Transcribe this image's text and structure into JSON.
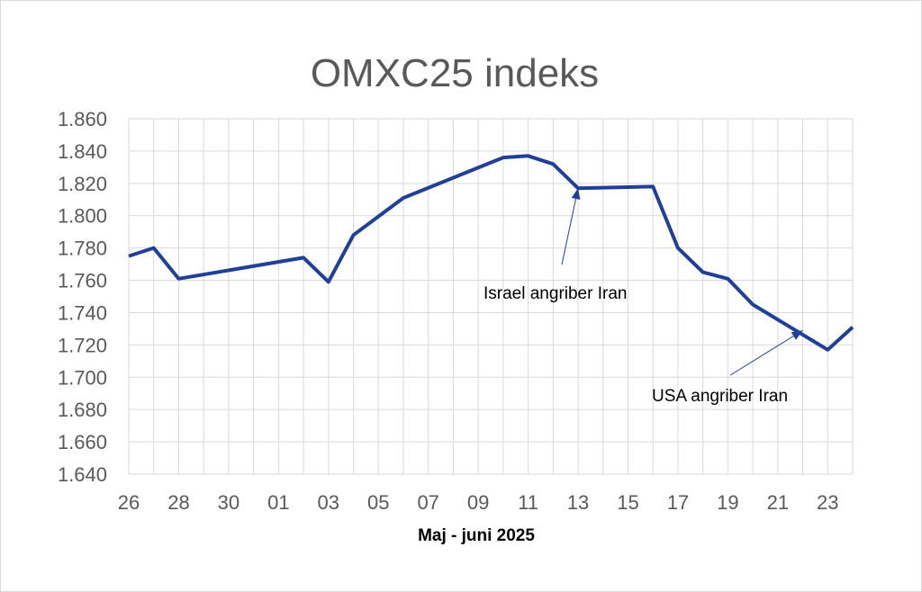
{
  "chart_data": {
    "type": "line",
    "title": "OMXC25 indeks",
    "xlabel": "Maj - juni 2025",
    "ylabel": "",
    "ylim": [
      1640,
      1860
    ],
    "yticks": [
      1640,
      1660,
      1680,
      1700,
      1720,
      1740,
      1760,
      1780,
      1800,
      1820,
      1840,
      1860
    ],
    "ytick_labels": [
      "1.640",
      "1.660",
      "1.680",
      "1.700",
      "1.720",
      "1.740",
      "1.760",
      "1.780",
      "1.800",
      "1.820",
      "1.840",
      "1.860"
    ],
    "xlim": [
      "2025-05-26",
      "2025-06-24"
    ],
    "xticks": [
      "2025-05-26",
      "2025-05-28",
      "2025-05-30",
      "2025-06-01",
      "2025-06-03",
      "2025-06-05",
      "2025-06-07",
      "2025-06-09",
      "2025-06-11",
      "2025-06-13",
      "2025-06-15",
      "2025-06-17",
      "2025-06-19",
      "2025-06-21",
      "2025-06-23"
    ],
    "xtick_labels": [
      "26",
      "28",
      "30",
      "01",
      "03",
      "05",
      "07",
      "09",
      "11",
      "13",
      "15",
      "17",
      "19",
      "21",
      "23"
    ],
    "grid": true,
    "line_color": "#1f3f99",
    "series": [
      {
        "points": [
          {
            "x": "2025-05-26",
            "y": 1775
          },
          {
            "x": "2025-05-27",
            "y": 1780
          },
          {
            "x": "2025-05-28",
            "y": 1761
          },
          {
            "x": "2025-06-02",
            "y": 1774
          },
          {
            "x": "2025-06-03",
            "y": 1759
          },
          {
            "x": "2025-06-04",
            "y": 1788
          },
          {
            "x": "2025-06-06",
            "y": 1811
          },
          {
            "x": "2025-06-10",
            "y": 1836
          },
          {
            "x": "2025-06-11",
            "y": 1837
          },
          {
            "x": "2025-06-12",
            "y": 1832
          },
          {
            "x": "2025-06-13",
            "y": 1817
          },
          {
            "x": "2025-06-16",
            "y": 1818
          },
          {
            "x": "2025-06-17",
            "y": 1780
          },
          {
            "x": "2025-06-18",
            "y": 1765
          },
          {
            "x": "2025-06-19",
            "y": 1761
          },
          {
            "x": "2025-06-20",
            "y": 1745
          },
          {
            "x": "2025-06-23",
            "y": 1717
          },
          {
            "x": "2025-06-24",
            "y": 1731
          }
        ]
      }
    ],
    "annotations": [
      {
        "text": "Israel angriber Iran",
        "target": {
          "x": "2025-06-13",
          "y": 1817
        }
      },
      {
        "text": "USA angriber Iran",
        "target": {
          "x": "2025-06-22",
          "y": 1729
        }
      }
    ]
  }
}
